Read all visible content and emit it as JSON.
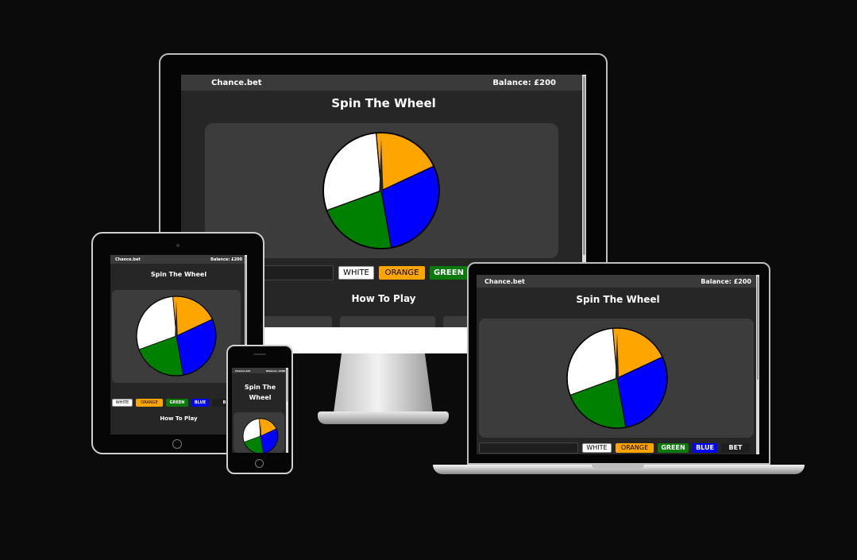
{
  "app": {
    "brand": "Chance.bet",
    "balance": "Balance: £200",
    "heading": "Spin The Wheel",
    "heading_mobile_line1": "Spin The",
    "heading_mobile_line2": "Wheel",
    "how_to_play": "How To Play",
    "bet_options": {
      "white": "WHITE",
      "orange": "ORANGE",
      "green": "GREEN",
      "blue": "BLUE",
      "bet": "BET"
    }
  },
  "wheel": {
    "segments": [
      {
        "name": "white",
        "color": "#ffffff",
        "start": 250,
        "end": 355
      },
      {
        "name": "orange",
        "color": "#ffa500",
        "start": -5,
        "end": 65
      },
      {
        "name": "blue",
        "color": "#0000ff",
        "start": 65,
        "end": 170
      },
      {
        "name": "green",
        "color": "#008000",
        "start": 170,
        "end": 250
      }
    ],
    "needle_color": "#222222"
  },
  "colors": {
    "background": "#0b0b0b",
    "screen": "#262626",
    "nav": "#3a3a3a",
    "panel": "#3c3c3c"
  }
}
